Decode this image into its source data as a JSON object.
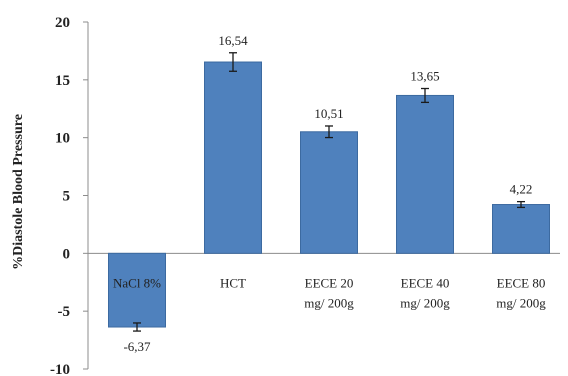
{
  "chart_data": {
    "type": "bar",
    "categories": [
      [
        "NaCl 8%"
      ],
      [
        "HCT"
      ],
      [
        "EECE 20",
        "mg/ 200g"
      ],
      [
        "EECE 40",
        "mg/ 200g"
      ],
      [
        "EECE 80",
        "mg/ 200g"
      ]
    ],
    "values": [
      -6.37,
      16.54,
      10.51,
      13.65,
      4.22
    ],
    "value_labels": [
      "-6,37",
      "16,54",
      "10,51",
      "13,65",
      "4,22"
    ],
    "error": [
      0.35,
      0.8,
      0.5,
      0.6,
      0.25
    ],
    "ylabel": "%Diastole Blood Pressure",
    "ylim": [
      -10,
      20
    ],
    "yticks": [
      20,
      15,
      10,
      5,
      0,
      -5,
      -10
    ],
    "ytick_labels": [
      "20",
      "15",
      "10",
      "5",
      "0",
      "-5",
      "-10"
    ],
    "grid": false,
    "legend": "none",
    "colors": {
      "bar": "#4f81bd",
      "bar_edge": "#3c6aa0",
      "axis": "#8c8c8c",
      "error": "#1a1a1a"
    }
  }
}
